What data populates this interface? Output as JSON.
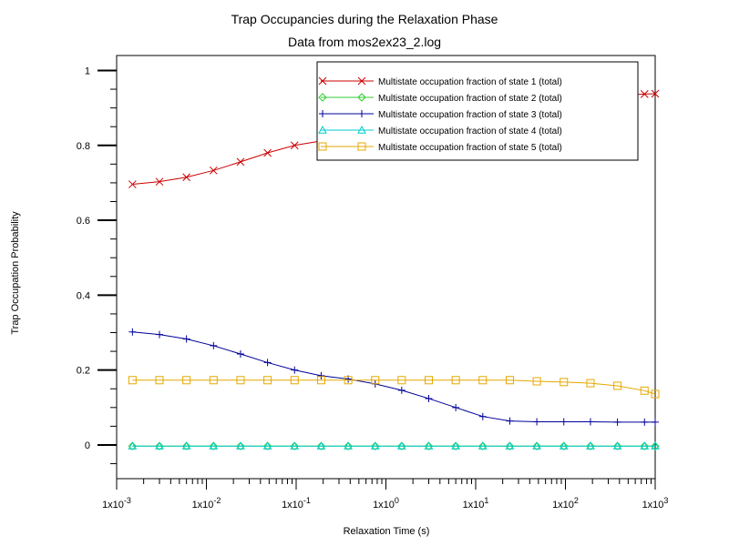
{
  "chart_data": {
    "type": "line",
    "title": "Trap Occupancies during the Relaxation Phase",
    "subtitle": "Data from mos2ex23_2.log",
    "xlabel": "Relaxation Time (s)",
    "ylabel": "Trap Occupation Probability",
    "x_scale": "log",
    "xlim": [
      0.001,
      1000
    ],
    "ylim": [
      -0.09,
      1.04
    ],
    "x_tick_values": [
      0.001,
      0.01,
      0.1,
      1,
      10,
      100,
      1000
    ],
    "x_ticks": [
      {
        "base": "1x10",
        "exp": "-3"
      },
      {
        "base": "1x10",
        "exp": "-2"
      },
      {
        "base": "1x10",
        "exp": "-1"
      },
      {
        "base": "1x10",
        "exp": "0"
      },
      {
        "base": "1x10",
        "exp": "1"
      },
      {
        "base": "1x10",
        "exp": "2"
      },
      {
        "base": "1x10",
        "exp": "3"
      }
    ],
    "y_ticks": [
      0,
      0.2,
      0.4,
      0.6,
      0.8,
      1
    ],
    "y_tick_labels": [
      "0",
      "0.2",
      "0.4",
      "0.6",
      "0.8",
      "1"
    ],
    "grid": false,
    "legend_position": "top-right",
    "x": [
      0.0015,
      0.003,
      0.006,
      0.012,
      0.024,
      0.048,
      0.096,
      0.19,
      0.38,
      0.76,
      1.5,
      3.0,
      6.0,
      12,
      24,
      48,
      96,
      190,
      380,
      760,
      1000
    ],
    "series": [
      {
        "name": "Multistate occupation fraction of state 1 (total)",
        "color": "#cc0000",
        "marker": "x",
        "values": [
          0.696,
          0.703,
          0.715,
          0.733,
          0.756,
          0.78,
          0.8,
          0.812,
          0.82,
          0.828,
          0.835,
          0.845,
          0.862,
          0.885,
          0.905,
          0.915,
          0.922,
          0.928,
          0.933,
          0.937,
          0.938
        ]
      },
      {
        "name": "Multistate occupation fraction of state 2 (total)",
        "color": "#33cc33",
        "marker": "diamond",
        "values": [
          -0.003,
          -0.003,
          -0.003,
          -0.003,
          -0.003,
          -0.003,
          -0.003,
          -0.003,
          -0.003,
          -0.003,
          -0.003,
          -0.003,
          -0.003,
          -0.003,
          -0.003,
          -0.003,
          -0.003,
          -0.003,
          -0.003,
          -0.003,
          -0.003
        ]
      },
      {
        "name": "Multistate occupation fraction of state 3 (total)",
        "color": "#000099",
        "marker": "plus",
        "values": [
          0.302,
          0.295,
          0.283,
          0.265,
          0.243,
          0.22,
          0.2,
          0.185,
          0.176,
          0.163,
          0.146,
          0.124,
          0.1,
          0.076,
          0.064,
          0.062,
          0.062,
          0.062,
          0.061,
          0.061,
          0.061
        ]
      },
      {
        "name": "Multistate occupation fraction of state 4 (total)",
        "color": "#00cccc",
        "marker": "triangle",
        "values": [
          -0.003,
          -0.003,
          -0.003,
          -0.003,
          -0.003,
          -0.003,
          -0.003,
          -0.003,
          -0.003,
          -0.003,
          -0.003,
          -0.003,
          -0.003,
          -0.003,
          -0.003,
          -0.003,
          -0.003,
          -0.003,
          -0.003,
          -0.003,
          -0.003
        ]
      },
      {
        "name": "Multistate occupation fraction of state 5 (total)",
        "color": "#e6a800",
        "marker": "square",
        "values": [
          0.173,
          0.173,
          0.173,
          0.173,
          0.173,
          0.173,
          0.173,
          0.173,
          0.173,
          0.173,
          0.173,
          0.173,
          0.173,
          0.173,
          0.173,
          0.17,
          0.168,
          0.165,
          0.158,
          0.145,
          0.136
        ]
      }
    ]
  }
}
